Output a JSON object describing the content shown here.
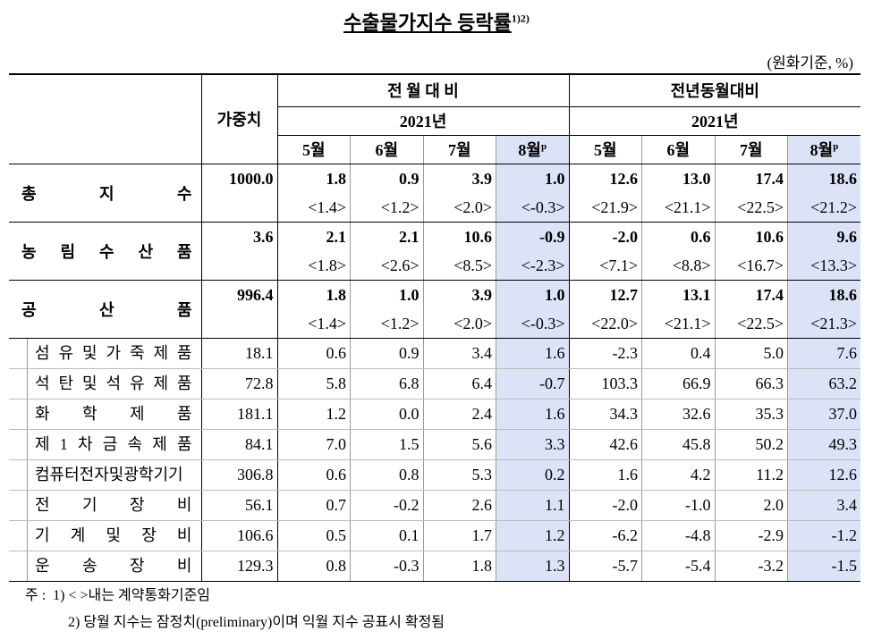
{
  "title": "수출물가지수 등락률",
  "title_note": "1)2)",
  "unit": "(원화기준, %)",
  "header": {
    "weight": "가중치",
    "groups": [
      "전 월 대 비",
      "전년동월대비"
    ],
    "year": "2021년",
    "months": [
      "5월",
      "6월",
      "7월",
      "8월"
    ],
    "prelim_mark": "p"
  },
  "rows": [
    {
      "label": "총 지 수",
      "weight": "1000.0",
      "values": [
        "1.8",
        "0.9",
        "3.9",
        "1.0",
        "12.6",
        "13.0",
        "17.4",
        "18.6"
      ],
      "contract": [
        "<1.4>",
        "<1.2>",
        "<2.0>",
        "<-0.3>",
        "<21.9>",
        "<21.1>",
        "<22.5>",
        "<21.2>"
      ]
    },
    {
      "label": "농 림 수 산 품",
      "weight": "3.6",
      "values": [
        "2.1",
        "2.1",
        "10.6",
        "-0.9",
        "-2.0",
        "0.6",
        "10.6",
        "9.6"
      ],
      "contract": [
        "<1.8>",
        "<2.6>",
        "<8.5>",
        "<-2.3>",
        "<7.1>",
        "<8.8>",
        "<16.7>",
        "<13.3>"
      ]
    },
    {
      "label": "공 산 품",
      "weight": "996.4",
      "values": [
        "1.8",
        "1.0",
        "3.9",
        "1.0",
        "12.7",
        "13.1",
        "17.4",
        "18.6"
      ],
      "contract": [
        "<1.4>",
        "<1.2>",
        "<2.0>",
        "<-0.3>",
        "<22.0>",
        "<21.1>",
        "<22.5>",
        "<21.3>"
      ]
    },
    {
      "label": "섬 유 및 가 죽 제 품",
      "weight": "18.1",
      "values": [
        "0.6",
        "0.9",
        "3.4",
        "1.6",
        "-2.3",
        "0.4",
        "5.0",
        "7.6"
      ]
    },
    {
      "label": "석 탄 및 석 유 제 품",
      "weight": "72.8",
      "values": [
        "5.8",
        "6.8",
        "6.4",
        "-0.7",
        "103.3",
        "66.9",
        "66.3",
        "63.2"
      ]
    },
    {
      "label": "화 학 제 품",
      "weight": "181.1",
      "values": [
        "1.2",
        "0.0",
        "2.4",
        "1.6",
        "34.3",
        "32.6",
        "35.3",
        "37.0"
      ]
    },
    {
      "label": "제 1 차 금 속 제 품",
      "weight": "84.1",
      "values": [
        "7.0",
        "1.5",
        "5.6",
        "3.3",
        "42.6",
        "45.8",
        "50.2",
        "49.3"
      ]
    },
    {
      "label": "컴퓨터전자및광학기기",
      "weight": "306.8",
      "values": [
        "0.6",
        "0.8",
        "5.3",
        "0.2",
        "1.6",
        "4.2",
        "11.2",
        "12.6"
      ]
    },
    {
      "label": "전 기 장 비",
      "weight": "56.1",
      "values": [
        "0.7",
        "-0.2",
        "2.6",
        "1.1",
        "-2.0",
        "-1.0",
        "2.0",
        "3.4"
      ]
    },
    {
      "label": "기 계 및 장 비",
      "weight": "106.6",
      "values": [
        "0.5",
        "0.1",
        "1.7",
        "1.2",
        "-6.2",
        "-4.8",
        "-2.9",
        "-1.2"
      ]
    },
    {
      "label": "운 송 장 비",
      "weight": "129.3",
      "values": [
        "0.8",
        "-0.3",
        "1.8",
        "1.3",
        "-5.7",
        "-5.4",
        "-3.2",
        "-1.5"
      ]
    }
  ],
  "notes": {
    "head": "주 :",
    "items": [
      "1) < >내는 계약통화기준임",
      "2) 당월 지수는 잠정치(preliminary)이며 익월 지수 공표시 확정됨"
    ]
  }
}
